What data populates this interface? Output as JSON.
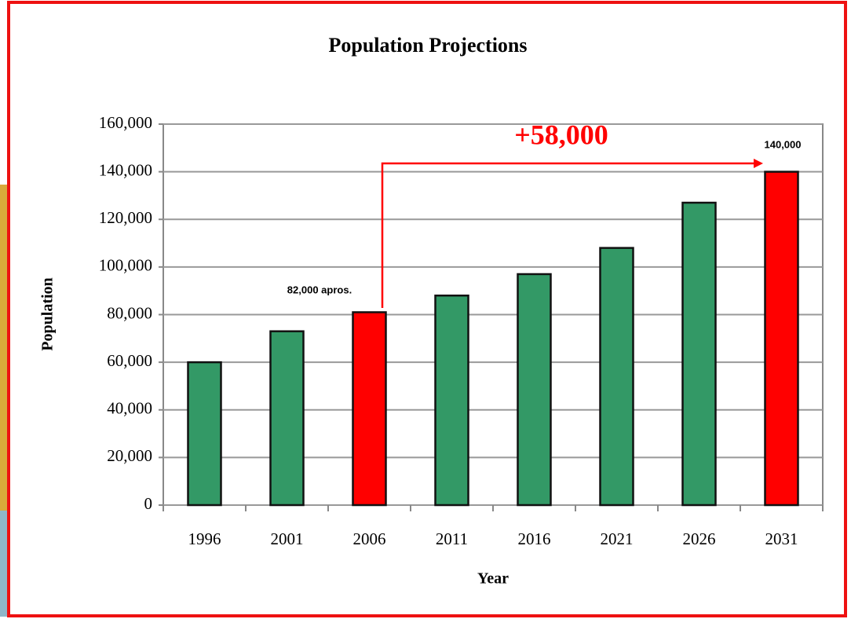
{
  "chart_data": {
    "type": "bar",
    "title": "Population Projections",
    "x_label": "Year",
    "y_label": "Population",
    "categories": [
      "1996",
      "2001",
      "2006",
      "2011",
      "2016",
      "2021",
      "2026",
      "2031"
    ],
    "values": [
      60000,
      73000,
      81000,
      88000,
      97000,
      108000,
      127000,
      140000
    ],
    "colors": [
      "#339966",
      "#339966",
      "#ff0000",
      "#339966",
      "#339966",
      "#339966",
      "#339966",
      "#ff0000"
    ],
    "ylim": [
      0,
      160000
    ],
    "yticks": [
      0,
      {
        "value": 20000,
        "label": "20,000"
      },
      {
        "value": 40000,
        "label": "40,000"
      },
      {
        "value": 60000,
        "label": "60,000"
      },
      {
        "value": 80000,
        "label": "80,000"
      },
      {
        "value": 100000,
        "label": "100,000"
      },
      {
        "value": 120000,
        "label": "120,000"
      },
      {
        "value": 140000,
        "label": "140,000"
      },
      {
        "value": 160000,
        "label": "160,000"
      }
    ],
    "grid": true,
    "annotations": [
      {
        "text": "82,000 apros."
      },
      {
        "text": "140,000"
      },
      {
        "text": "+58,000"
      }
    ]
  }
}
